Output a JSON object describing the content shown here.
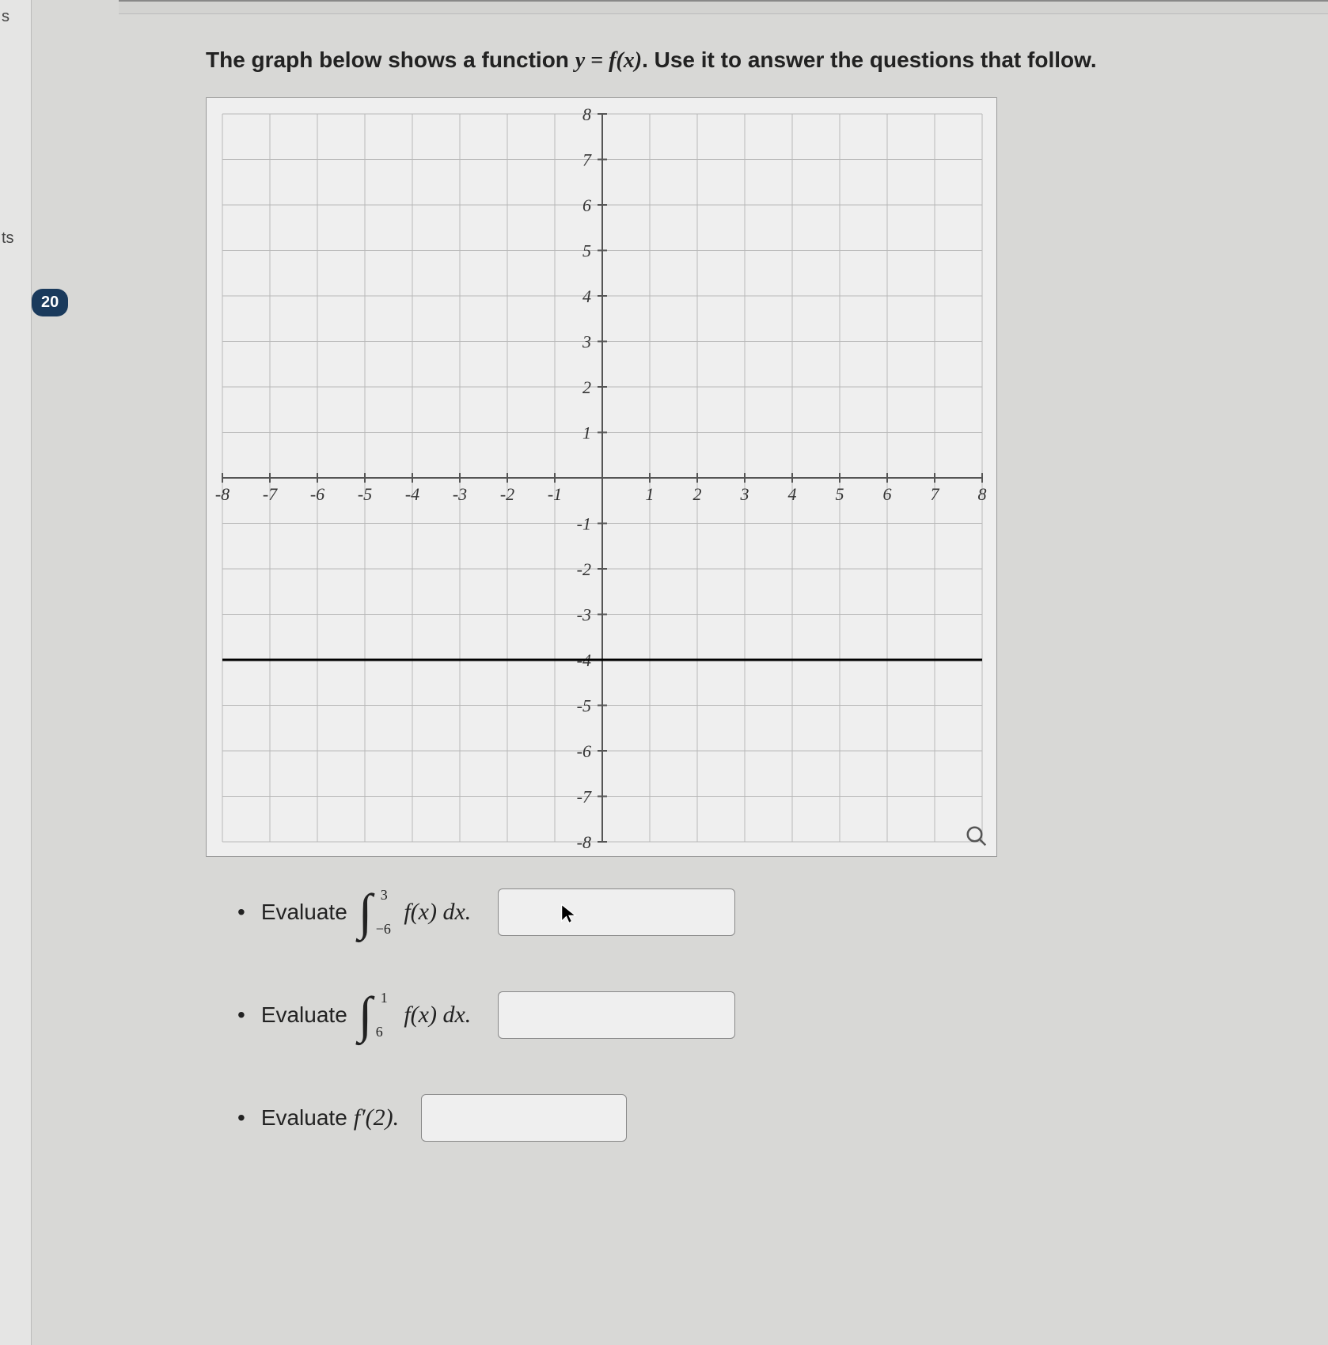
{
  "rail": {
    "label1": "s",
    "label2": "ts"
  },
  "badge": "20",
  "prompt": {
    "pre": "The graph below shows a function ",
    "eq": "y = f(x)",
    "post": ". Use it to answer the questions that follow."
  },
  "graph": {
    "xmin": -8,
    "xmax": 8,
    "ymin": -8,
    "ymax": 8,
    "xticks": [
      -8,
      -7,
      -6,
      -5,
      -4,
      -3,
      -2,
      -1,
      1,
      2,
      3,
      4,
      5,
      6,
      7,
      8
    ],
    "yticks": [
      -8,
      -7,
      -6,
      -5,
      -4,
      -3,
      -2,
      -1,
      1,
      2,
      3,
      4,
      5,
      6,
      7,
      8
    ],
    "grid_color": "#b8b8b8",
    "axis_color": "#555",
    "tick_font": 22,
    "function_color": "#000000",
    "function_y": -4,
    "function_width": 3,
    "tick_label_color": "#333"
  },
  "q1": {
    "verb": "Evaluate",
    "lower": "−6",
    "upper": "3",
    "body": "f(x) dx."
  },
  "q2": {
    "verb": "Evaluate",
    "lower": "6",
    "upper": "1",
    "body": "f(x) dx."
  },
  "q3": {
    "verb": "Evaluate ",
    "expr": "f′(2)."
  }
}
